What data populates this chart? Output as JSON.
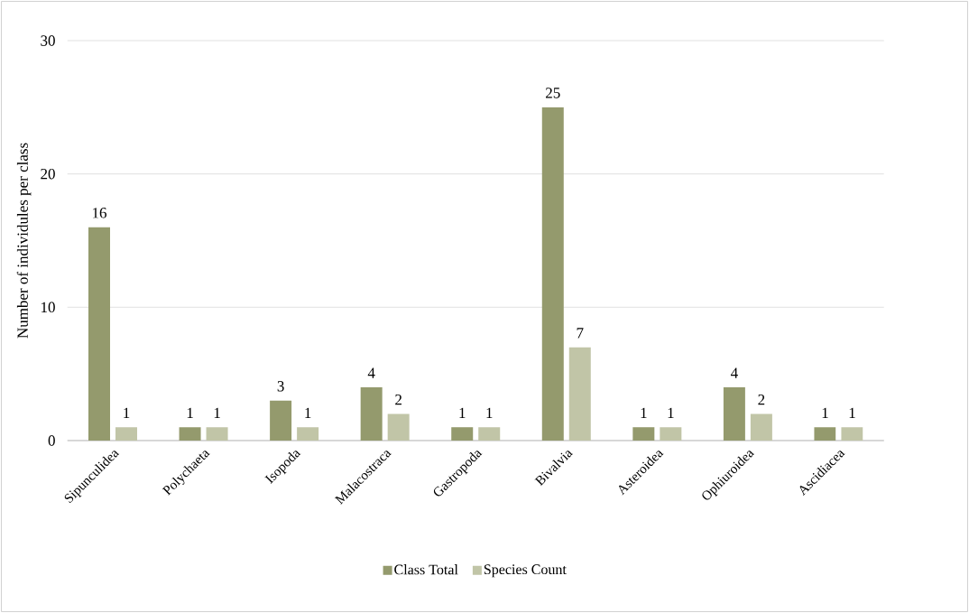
{
  "chart_data": {
    "type": "bar",
    "ylabel": "Number of individules per class",
    "categories": [
      "Sipunculidea",
      "Polychaeta",
      "Isopoda",
      "Malacostraca",
      "Gastropoda",
      "Bivalvia",
      "Asteroidea",
      "Ophiuroidea",
      "Ascidiacea"
    ],
    "series": [
      {
        "name": "Class Total",
        "color": "#949a6d",
        "values": [
          16,
          1,
          3,
          4,
          1,
          25,
          1,
          4,
          1
        ]
      },
      {
        "name": "Species Count",
        "color": "#c1c5a7",
        "values": [
          1,
          1,
          1,
          2,
          1,
          7,
          1,
          2,
          1
        ]
      }
    ],
    "ylim": [
      0,
      30
    ],
    "yticks": [
      0,
      10,
      20,
      30
    ],
    "grid": "y",
    "legend": "bottom",
    "data_labels": true
  }
}
